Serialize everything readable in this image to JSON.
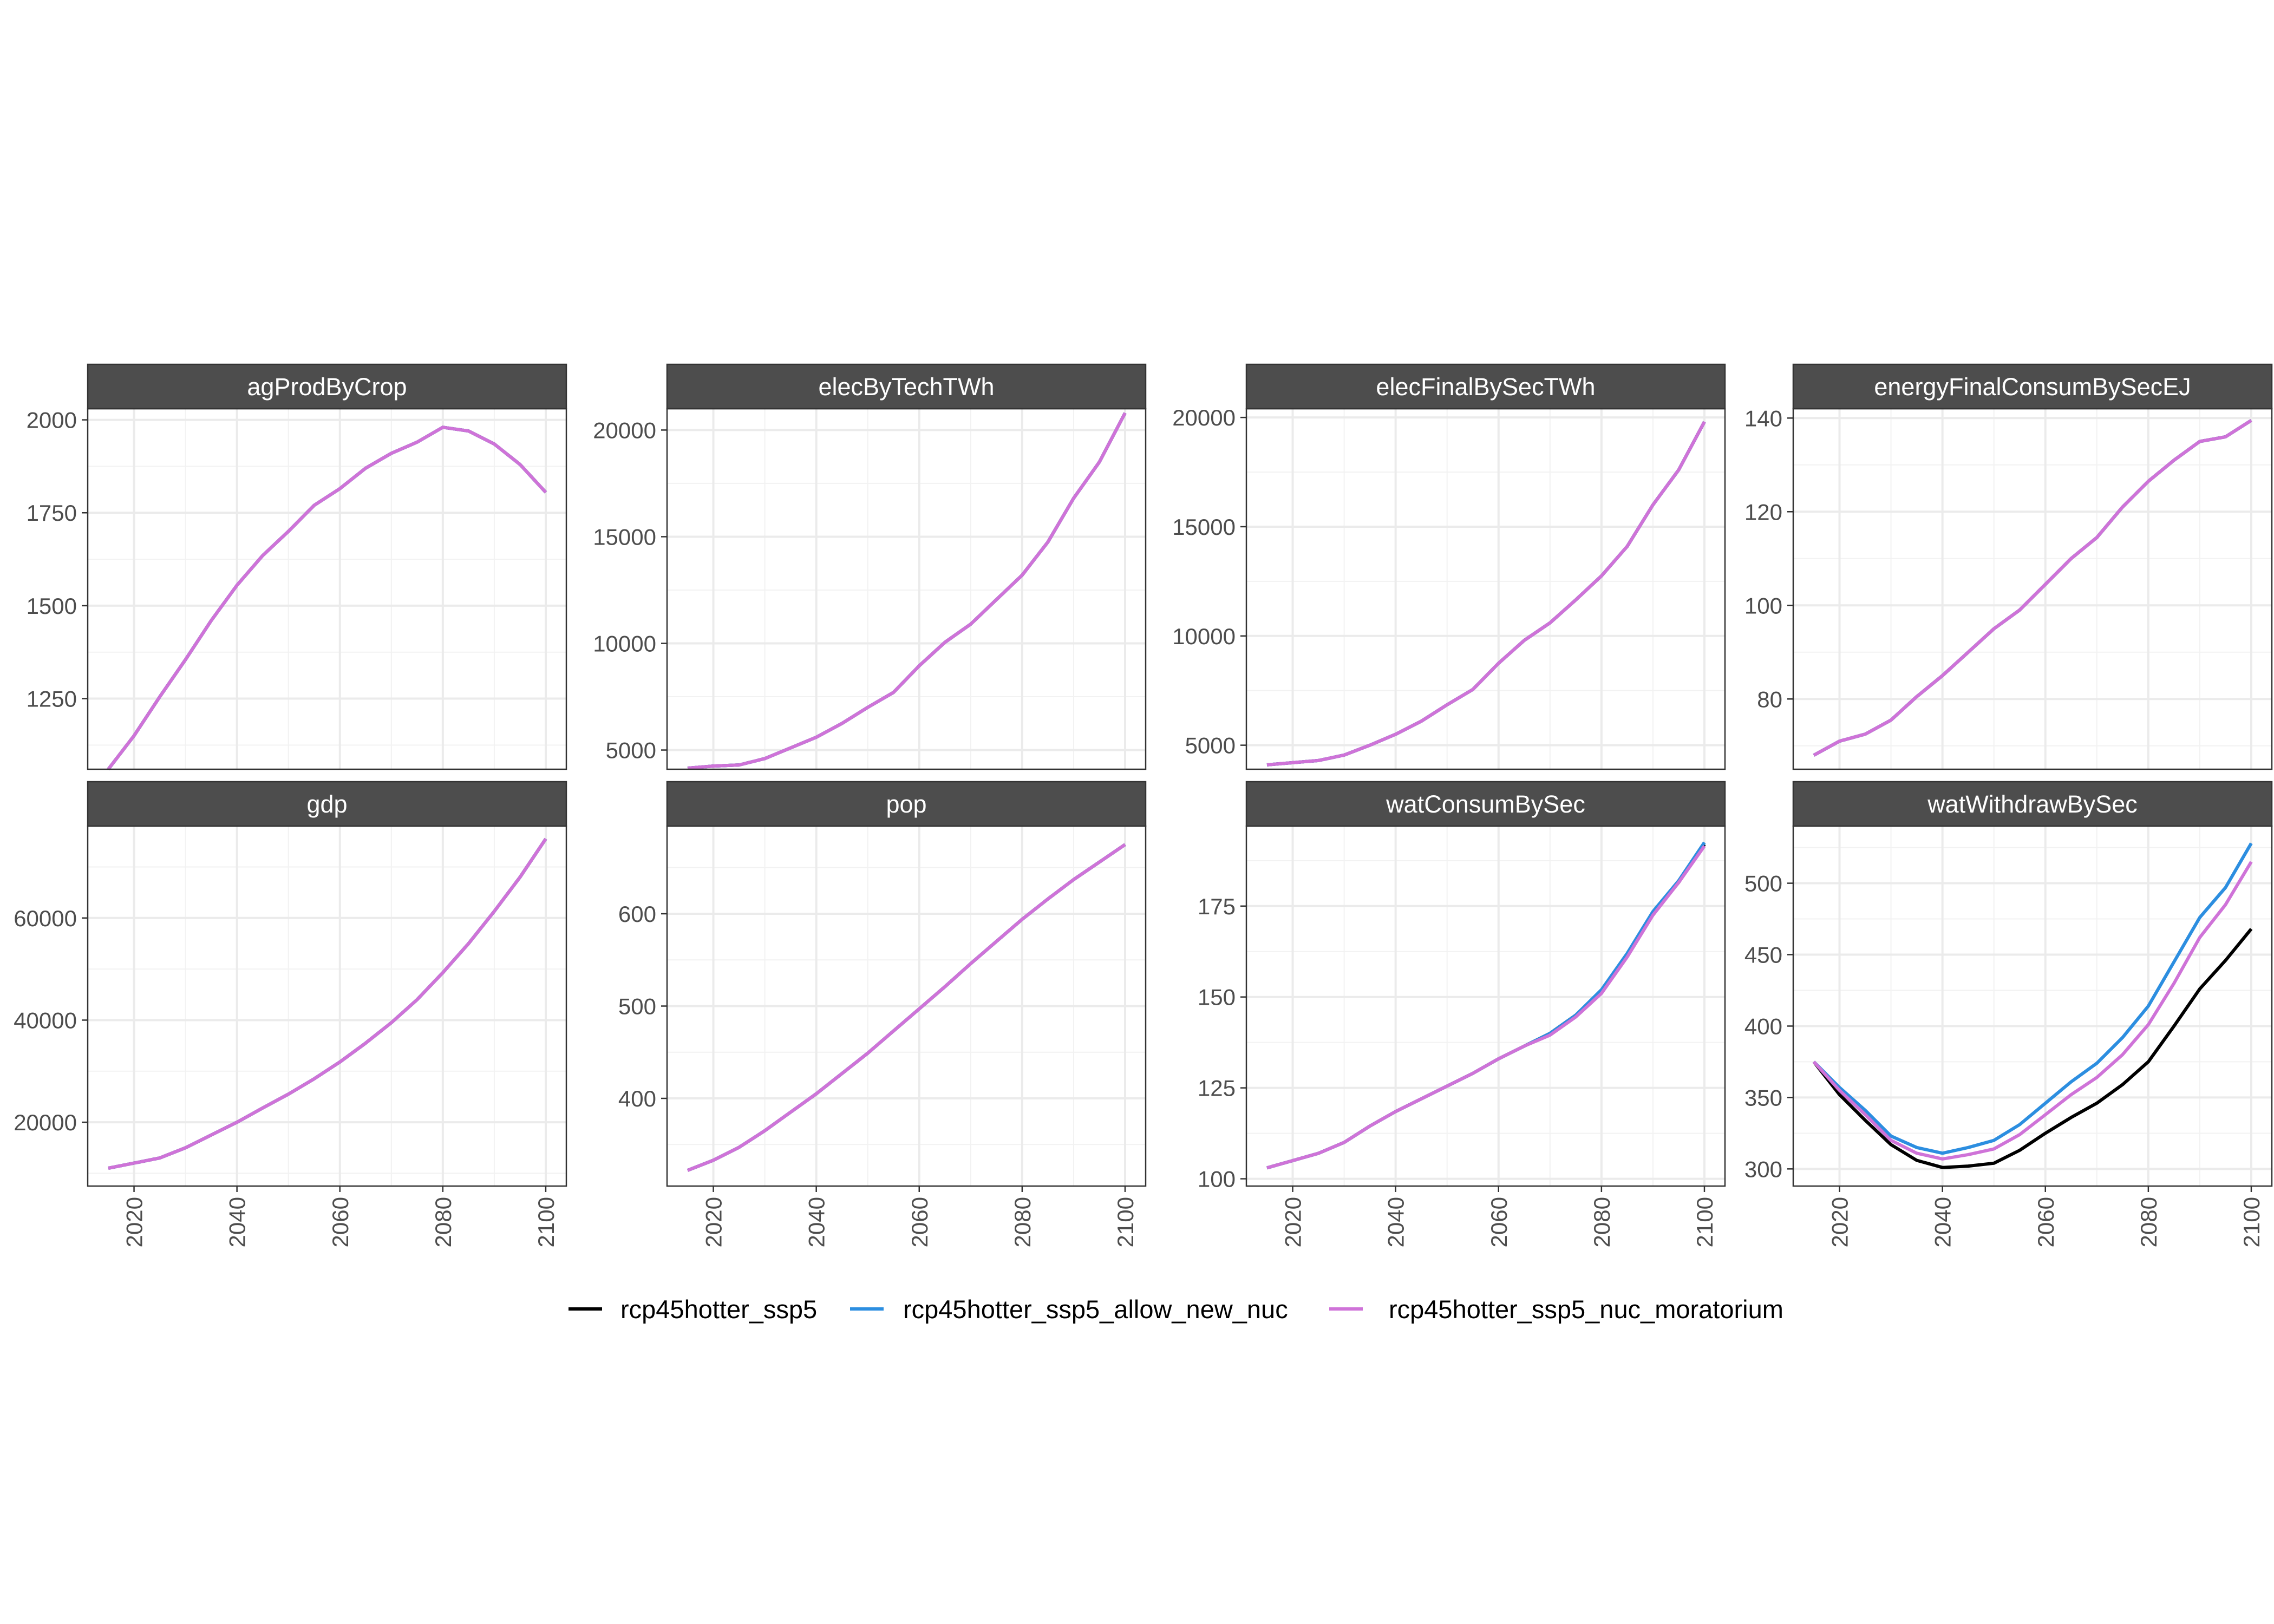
{
  "chart_data": {
    "type": "line",
    "layout": "facet_wrap 2 rows x 4 columns, free y scales",
    "x_ticks": [
      2020,
      2040,
      2060,
      2080,
      2100
    ],
    "x_range": [
      2015,
      2100
    ],
    "grid": true,
    "legend_position": "bottom",
    "legend": [
      {
        "name": "rcp45hotter_ssp5",
        "color": "#000000"
      },
      {
        "name": "rcp45hotter_ssp5_allow_new_nuc",
        "color": "#2c8ee0"
      },
      {
        "name": "rcp45hotter_ssp5_nuc_moratorium",
        "color": "#cf73d8"
      }
    ],
    "x": [
      2015,
      2020,
      2025,
      2030,
      2035,
      2040,
      2045,
      2050,
      2055,
      2060,
      2065,
      2070,
      2075,
      2080,
      2085,
      2090,
      2095,
      2100
    ],
    "panels": [
      {
        "title": "agProdByCrop",
        "ylim": [
          1060,
          2030
        ],
        "y_ticks": [
          1250,
          1500,
          1750,
          2000
        ],
        "series": [
          {
            "name": "rcp45hotter_ssp5",
            "values": [
              1060,
              1150,
              1255,
              1355,
              1460,
              1555,
              1635,
              1700,
              1770,
              1815,
              1870,
              1910,
              1940,
              1980,
              1970,
              1935,
              1880,
              1805
            ]
          },
          {
            "name": "rcp45hotter_ssp5_allow_new_nuc",
            "values": [
              1060,
              1150,
              1255,
              1355,
              1460,
              1555,
              1635,
              1700,
              1770,
              1815,
              1870,
              1910,
              1940,
              1980,
              1970,
              1935,
              1880,
              1805
            ]
          },
          {
            "name": "rcp45hotter_ssp5_nuc_moratorium",
            "values": [
              1060,
              1150,
              1255,
              1355,
              1460,
              1555,
              1635,
              1700,
              1770,
              1815,
              1870,
              1910,
              1940,
              1980,
              1970,
              1935,
              1880,
              1805
            ]
          }
        ]
      },
      {
        "title": "elecByTechTWh",
        "ylim": [
          4100,
          21000
        ],
        "y_ticks": [
          5000,
          10000,
          15000,
          20000
        ],
        "series": [
          {
            "name": "rcp45hotter_ssp5",
            "values": [
              4150,
              4250,
              4300,
              4600,
              5100,
              5600,
              6250,
              7000,
              7700,
              8950,
              10050,
              10900,
              12050,
              13200,
              14750,
              16800,
              18500,
              20800
            ]
          },
          {
            "name": "rcp45hotter_ssp5_allow_new_nuc",
            "values": [
              4150,
              4250,
              4300,
              4600,
              5100,
              5600,
              6250,
              7000,
              7700,
              8950,
              10050,
              10900,
              12050,
              13200,
              14750,
              16800,
              18500,
              20800
            ]
          },
          {
            "name": "rcp45hotter_ssp5_nuc_moratorium",
            "values": [
              4150,
              4250,
              4300,
              4600,
              5100,
              5600,
              6250,
              7000,
              7700,
              8950,
              10050,
              10900,
              12050,
              13200,
              14750,
              16800,
              18500,
              20800
            ]
          }
        ]
      },
      {
        "title": "elecFinalBySecTWh",
        "ylim": [
          3900,
          20400
        ],
        "y_ticks": [
          5000,
          10000,
          15000,
          20000
        ],
        "series": [
          {
            "name": "rcp45hotter_ssp5",
            "values": [
              4100,
              4200,
              4300,
              4550,
              5000,
              5500,
              6100,
              6850,
              7550,
              8750,
              9800,
              10600,
              11650,
              12750,
              14100,
              16000,
              17600,
              19800
            ]
          },
          {
            "name": "rcp45hotter_ssp5_allow_new_nuc",
            "values": [
              4100,
              4200,
              4300,
              4550,
              5000,
              5500,
              6100,
              6850,
              7550,
              8750,
              9800,
              10600,
              11650,
              12750,
              14100,
              16000,
              17600,
              19800
            ]
          },
          {
            "name": "rcp45hotter_ssp5_nuc_moratorium",
            "values": [
              4100,
              4200,
              4300,
              4550,
              5000,
              5500,
              6100,
              6850,
              7550,
              8750,
              9800,
              10600,
              11650,
              12750,
              14100,
              16000,
              17600,
              19800
            ]
          }
        ]
      },
      {
        "title": "energyFinalConsumBySecEJ",
        "ylim": [
          65,
          142
        ],
        "y_ticks": [
          80,
          100,
          120,
          140
        ],
        "series": [
          {
            "name": "rcp45hotter_ssp5",
            "values": [
              68,
              71,
              72.5,
              75.5,
              80.5,
              85,
              90,
              95,
              99,
              104.5,
              110,
              114.5,
              121,
              126.5,
              131,
              135,
              136,
              139.5
            ]
          },
          {
            "name": "rcp45hotter_ssp5_allow_new_nuc",
            "values": [
              68,
              71,
              72.5,
              75.5,
              80.5,
              85,
              90,
              95,
              99,
              104.5,
              110,
              114.5,
              121,
              126.5,
              131,
              135,
              136,
              139.5
            ]
          },
          {
            "name": "rcp45hotter_ssp5_nuc_moratorium",
            "values": [
              68,
              71,
              72.5,
              75.5,
              80.5,
              85,
              90,
              95,
              99,
              104.5,
              110,
              114.5,
              121,
              126.5,
              131,
              135,
              136,
              139.5
            ]
          }
        ]
      },
      {
        "title": "gdp",
        "ylim": [
          7500,
          78000
        ],
        "y_ticks": [
          20000,
          40000,
          60000
        ],
        "series": [
          {
            "name": "rcp45hotter_ssp5",
            "values": [
              11000,
              12000,
              13000,
              15000,
              17500,
              20000,
              22800,
              25500,
              28500,
              31800,
              35500,
              39500,
              44000,
              49300,
              55000,
              61300,
              68000,
              75500
            ]
          },
          {
            "name": "rcp45hotter_ssp5_allow_new_nuc",
            "values": [
              11000,
              12000,
              13000,
              15000,
              17500,
              20000,
              22800,
              25500,
              28500,
              31800,
              35500,
              39500,
              44000,
              49300,
              55000,
              61300,
              68000,
              75500
            ]
          },
          {
            "name": "rcp45hotter_ssp5_nuc_moratorium",
            "values": [
              11000,
              12000,
              13000,
              15000,
              17500,
              20000,
              22800,
              25500,
              28500,
              31800,
              35500,
              39500,
              44000,
              49300,
              55000,
              61300,
              68000,
              75500
            ]
          }
        ]
      },
      {
        "title": "pop",
        "ylim": [
          305,
          695
        ],
        "y_ticks": [
          400,
          500,
          600
        ],
        "series": [
          {
            "name": "rcp45hotter_ssp5",
            "values": [
              322,
              333,
              347,
              365,
              385,
              405,
              427,
              449,
              473,
              497,
              521,
              546,
              570,
              594,
              616,
              637,
              656,
              675
            ]
          },
          {
            "name": "rcp45hotter_ssp5_allow_new_nuc",
            "values": [
              322,
              333,
              347,
              365,
              385,
              405,
              427,
              449,
              473,
              497,
              521,
              546,
              570,
              594,
              616,
              637,
              656,
              675
            ]
          },
          {
            "name": "rcp45hotter_ssp5_nuc_moratorium",
            "values": [
              322,
              333,
              347,
              365,
              385,
              405,
              427,
              449,
              473,
              497,
              521,
              546,
              570,
              594,
              616,
              637,
              656,
              675
            ]
          }
        ]
      },
      {
        "title": "watConsumBySec",
        "ylim": [
          98,
          197
        ],
        "y_ticks": [
          100,
          125,
          150,
          175
        ],
        "series": [
          {
            "name": "rcp45hotter_ssp5",
            "values": [
              103,
              105,
              107,
              110,
              114.5,
              118.5,
              122,
              125.5,
              129,
              133,
              136.5,
              140,
              145,
              151.5,
              161.5,
              173,
              181.5,
              192
            ]
          },
          {
            "name": "rcp45hotter_ssp5_allow_new_nuc",
            "values": [
              103,
              105,
              107,
              110,
              114.5,
              118.5,
              122,
              125.5,
              129,
              133,
              136.5,
              140,
              145,
              152,
              162,
              173.5,
              182,
              192.5
            ]
          },
          {
            "name": "rcp45hotter_ssp5_nuc_moratorium",
            "values": [
              103,
              105,
              107,
              110,
              114.5,
              118.5,
              122,
              125.5,
              129,
              133,
              136.5,
              139.5,
              144.5,
              151,
              161,
              172.5,
              181.5,
              191.5
            ]
          }
        ]
      },
      {
        "title": "watWithdrawBySec",
        "ylim": [
          288,
          540
        ],
        "y_ticks": [
          300,
          350,
          400,
          450,
          500
        ],
        "series": [
          {
            "name": "rcp45hotter_ssp5",
            "values": [
              375,
              352,
              334,
              317,
              306,
              301,
              302,
              304,
              313,
              325,
              336,
              346,
              359,
              375,
              400,
              426,
              446,
              468
            ]
          },
          {
            "name": "rcp45hotter_ssp5_allow_new_nuc",
            "values": [
              375,
              357,
              341,
              323,
              315,
              311,
              315,
              320,
              331,
              346,
              361,
              374,
              392,
              414,
              445,
              476,
              497,
              528
            ]
          },
          {
            "name": "rcp45hotter_ssp5_nuc_moratorium",
            "values": [
              375,
              355,
              338,
              320,
              311,
              307,
              310,
              314,
              324,
              338,
              352,
              364,
              380,
              401,
              430,
              462,
              485,
              515
            ]
          }
        ]
      }
    ]
  }
}
